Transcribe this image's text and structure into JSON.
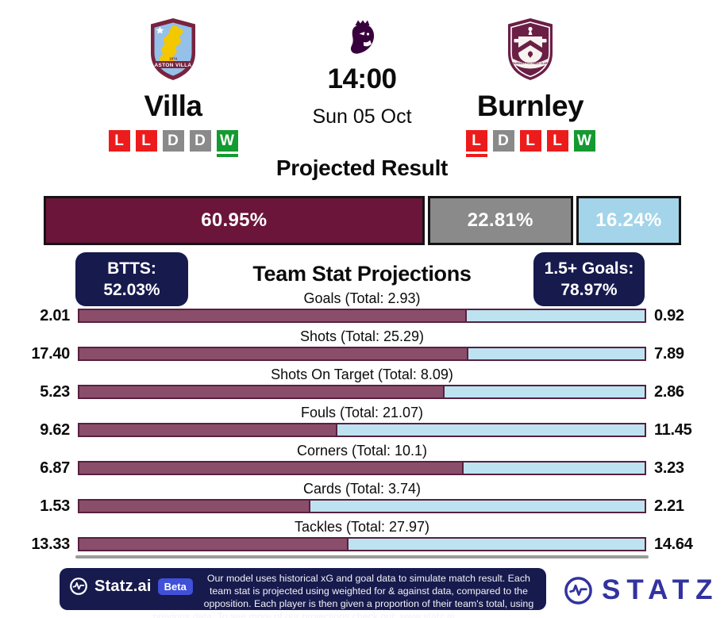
{
  "colors": {
    "claret": "#6B153A",
    "stat_claret": "#8A4E6B",
    "light_blue": "#A3D4EA",
    "stat_blue": "#BDE3F1",
    "gray": "#8A8A8A",
    "navy": "#171A4D",
    "form_win": "#149A30",
    "form_draw": "#8A8A8A",
    "form_loss": "#EC1C1C",
    "pl_purple": "#38003C",
    "statz_indigo": "#3232A0",
    "beta_blue": "#4050D8"
  },
  "header": {
    "home": {
      "name": "Villa",
      "crest_icon": "aston-villa-crest",
      "crest_text": "ASTON VILLA",
      "crest_year": "1874",
      "form": [
        "L",
        "L",
        "D",
        "D",
        "W"
      ],
      "underline_index": 4
    },
    "away": {
      "name": "Burnley",
      "crest_icon": "burnley-crest",
      "crest_text": "BURNLEY FOOTBALL CLUB",
      "form": [
        "L",
        "D",
        "L",
        "L",
        "W"
      ],
      "underline_index": 0
    },
    "competition_icon": "premier-league-lion",
    "kickoff_time": "14:00",
    "kickoff_date": "Sun 05 Oct"
  },
  "projected_result": {
    "title": "Projected Result",
    "segments": [
      {
        "name": "home-win",
        "label": "60.95%",
        "value": 60.95,
        "color": "#6B153A",
        "text_color": "#FFFFFF"
      },
      {
        "name": "draw",
        "label": "22.81%",
        "value": 22.81,
        "color": "#8A8A8A",
        "text_color": "#FFFFFF"
      },
      {
        "name": "away-win",
        "label": "16.24%",
        "value": 16.24,
        "color": "#A3D4EA",
        "text_color": "#FFFFFF"
      }
    ]
  },
  "badges": {
    "btts": {
      "label": "BTTS:",
      "value": "52.03%"
    },
    "goals15": {
      "label": "1.5+ Goals:",
      "value": "78.97%"
    }
  },
  "team_stats": {
    "title": "Team Stat Projections",
    "rows": [
      {
        "label": "Goals (Total: 2.93)",
        "home": "2.01",
        "away": "0.92",
        "home_value": 2.01,
        "away_value": 0.92
      },
      {
        "label": "Shots (Total: 25.29)",
        "home": "17.40",
        "away": "7.89",
        "home_value": 17.4,
        "away_value": 7.89
      },
      {
        "label": "Shots On Target (Total: 8.09)",
        "home": "5.23",
        "away": "2.86",
        "home_value": 5.23,
        "away_value": 2.86
      },
      {
        "label": "Fouls (Total: 21.07)",
        "home": "9.62",
        "away": "11.45",
        "home_value": 9.62,
        "away_value": 11.45
      },
      {
        "label": "Corners (Total: 10.1)",
        "home": "6.87",
        "away": "3.23",
        "home_value": 6.87,
        "away_value": 3.23
      },
      {
        "label": "Cards (Total: 3.74)",
        "home": "1.53",
        "away": "2.21",
        "home_value": 1.53,
        "away_value": 2.21
      },
      {
        "label": "Tackles (Total: 27.97)",
        "home": "13.33",
        "away": "14.64",
        "home_value": 13.33,
        "away_value": 14.64
      }
    ]
  },
  "footer": {
    "brand": "Statz.ai",
    "beta_label": "Beta",
    "description": "Our model uses historical xG and goal data to simulate match result. Each team stat is projected using weighted for & against data, compared to the opposition. Each player is then given a proportion of their team's total, using previous data. To see more of our projections check out: www.statz.ai",
    "wordmark": "STATZ"
  },
  "chart_data": [
    {
      "type": "bar",
      "subtype": "stacked-horizontal",
      "title": "Projected Result",
      "categories": [
        "Villa win",
        "Draw",
        "Burnley win"
      ],
      "values": [
        60.95,
        22.81,
        16.24
      ],
      "unit": "%",
      "colors": [
        "#6B153A",
        "#8A8A8A",
        "#A3D4EA"
      ],
      "legend_position": "none",
      "grid": false
    },
    {
      "type": "bar",
      "subtype": "diverging-horizontal",
      "title": "Team Stat Projections",
      "categories": [
        "Goals",
        "Shots",
        "Shots On Target",
        "Fouls",
        "Corners",
        "Cards",
        "Tackles"
      ],
      "series": [
        {
          "name": "Villa",
          "color": "#8A4E6B",
          "values": [
            2.01,
            17.4,
            5.23,
            9.62,
            6.87,
            1.53,
            13.33
          ]
        },
        {
          "name": "Burnley",
          "color": "#BDE3F1",
          "values": [
            0.92,
            7.89,
            2.86,
            11.45,
            3.23,
            2.21,
            14.64
          ]
        }
      ],
      "totals": [
        2.93,
        25.29,
        8.09,
        21.07,
        10.1,
        3.74,
        27.97
      ],
      "annotations": [
        "BTTS: 52.03%",
        "1.5+ Goals: 78.97%"
      ],
      "grid": false
    }
  ]
}
